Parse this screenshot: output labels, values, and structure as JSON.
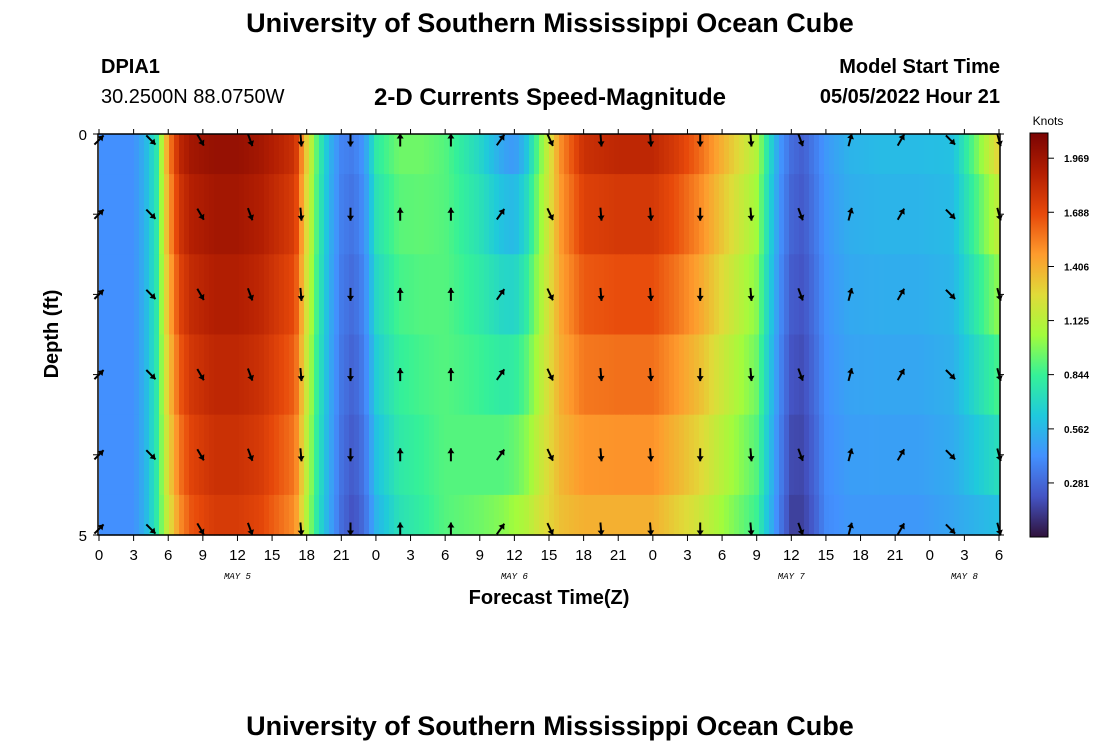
{
  "header": {
    "title": "University of Southern Mississippi Ocean Cube",
    "station_id": "DPIA1",
    "station_coords": "30.2500N  88.0750W",
    "plot_title": "2-D Currents Speed-Magnitude",
    "model_start_label": "Model Start Time",
    "model_start_value": "05/05/2022 Hour 21"
  },
  "footer": {
    "title": "University of Southern Mississippi Ocean Cube"
  },
  "chart_data": {
    "type": "heatmap",
    "title": "2-D Currents Speed-Magnitude",
    "xlabel": "Forecast Time(Z)",
    "ylabel": "Depth (ft)",
    "ylim": [
      0,
      5
    ],
    "y_ticks": [
      "0",
      "5"
    ],
    "x_start_hour": 0,
    "x_end_hour": 78,
    "x_tick_step_hours": 3,
    "x_tick_labels": [
      "0",
      "3",
      "6",
      "9",
      "12",
      "15",
      "18",
      "21",
      "0",
      "3",
      "6",
      "9",
      "12",
      "15",
      "18",
      "21",
      "0",
      "3",
      "6",
      "9",
      "12",
      "15",
      "18",
      "21",
      "0",
      "3",
      "6"
    ],
    "date_labels": [
      {
        "label": "MAY 5",
        "hour": 12
      },
      {
        "label": "MAY 6",
        "hour": 36
      },
      {
        "label": "MAY 7",
        "hour": 60
      },
      {
        "label": "MAY 8",
        "hour": 75
      }
    ],
    "colorbar": {
      "unit": "Knots",
      "min": 0,
      "max": 2.1,
      "ticks": [
        "1.969",
        "1.688",
        "1.406",
        "1.125",
        "0.844",
        "0.562",
        "0.281"
      ],
      "tick_values": [
        1.969,
        1.688,
        1.406,
        1.125,
        0.844,
        0.562,
        0.281
      ]
    },
    "depth_rows": 6,
    "speed_profile": {
      "hours": [
        0,
        3,
        4,
        5,
        6,
        7,
        8,
        10,
        12,
        14,
        17,
        18,
        19,
        20,
        21,
        22,
        23,
        24,
        26,
        28,
        30,
        33,
        35,
        36,
        37,
        38,
        40,
        42,
        45,
        48,
        50,
        52,
        54,
        57,
        58,
        59,
        60,
        61,
        62,
        63,
        65,
        68,
        71,
        74,
        76,
        78
      ],
      "surface": [
        0.42,
        0.42,
        0.55,
        0.78,
        1.5,
        1.85,
        1.95,
        2.0,
        2.0,
        1.95,
        1.8,
        1.3,
        0.85,
        0.55,
        0.38,
        0.35,
        0.45,
        0.8,
        0.95,
        0.95,
        0.9,
        0.7,
        0.5,
        0.45,
        0.6,
        0.9,
        1.5,
        1.8,
        1.85,
        1.85,
        1.75,
        1.6,
        1.4,
        1.1,
        0.75,
        0.45,
        0.3,
        0.25,
        0.35,
        0.45,
        0.55,
        0.58,
        0.58,
        0.6,
        0.95,
        1.3
      ],
      "bottom": [
        0.42,
        0.42,
        0.55,
        0.8,
        1.2,
        1.5,
        1.65,
        1.75,
        1.75,
        1.7,
        1.5,
        1.1,
        0.75,
        0.5,
        0.3,
        0.2,
        0.3,
        0.55,
        0.75,
        0.82,
        0.9,
        0.95,
        1.0,
        1.05,
        1.1,
        1.2,
        1.35,
        1.4,
        1.4,
        1.4,
        1.3,
        1.2,
        1.05,
        0.85,
        0.6,
        0.35,
        0.15,
        0.15,
        0.25,
        0.4,
        0.45,
        0.45,
        0.45,
        0.5,
        0.55,
        0.6
      ]
    },
    "arrows": {
      "hours": [
        0,
        4.5,
        8.8,
        13.1,
        17.5,
        21.8,
        26.1,
        30.5,
        34.8,
        39.1,
        43.5,
        47.8,
        52.1,
        56.5,
        60.8,
        65.1,
        69.5,
        73.8,
        78
      ],
      "angles_deg": [
        45,
        135,
        150,
        160,
        175,
        180,
        0,
        0,
        35,
        155,
        175,
        175,
        180,
        175,
        160,
        15,
        30,
        135,
        165
      ]
    }
  }
}
